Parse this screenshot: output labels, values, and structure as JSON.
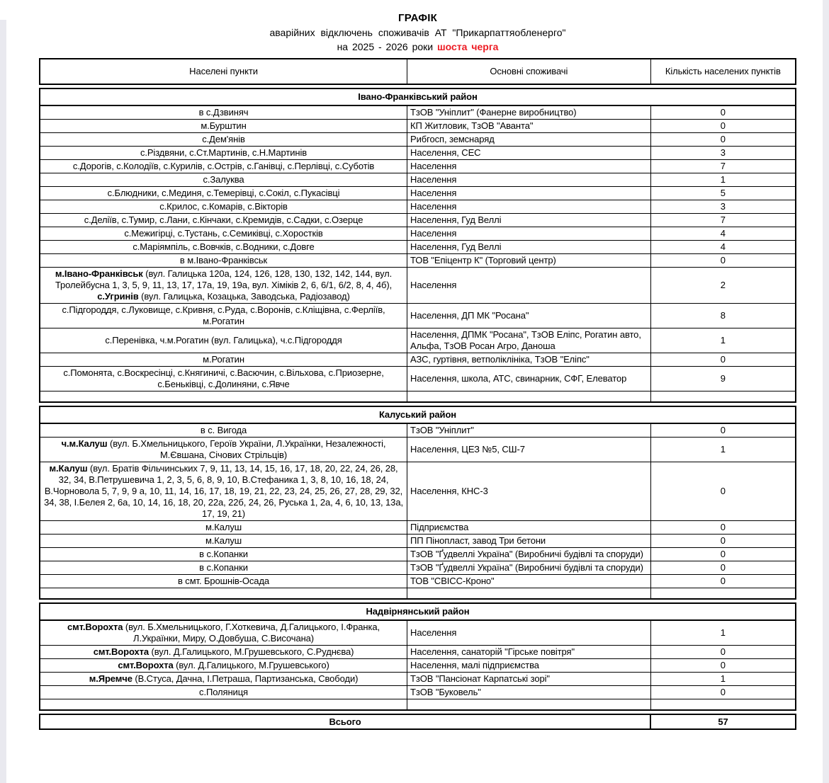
{
  "page": {
    "title_line1": "ГРАФІК",
    "title_line2": "аварійних  відключень  споживачів  АТ \"Прикарпаттяобленерго\"",
    "title_line3_prefix": "на  2025 - 2026 роки ",
    "title_line3_red": "шоста черга"
  },
  "colors": {
    "accent_red": "#ed1c24",
    "border": "#000000",
    "page_bg": "#ffffff"
  },
  "table": {
    "columns": [
      "Населені пункти",
      "Основні споживачі",
      "Кількість населених пунктів"
    ],
    "total_label": "Всього",
    "total_value": "57",
    "sections": [
      {
        "name": "Івано-Франківський район",
        "rows": [
          {
            "settlement": [
              {
                "text": "в с.Дзвиняч",
                "bold": false
              }
            ],
            "consumers": "ТзОВ \"Уніплит\" (Фанерне виробництво)",
            "count": "0"
          },
          {
            "settlement": [
              {
                "text": "м.Бурштин",
                "bold": false
              }
            ],
            "consumers": "КП Житловик, ТзОВ \"Аванта\"",
            "count": "0"
          },
          {
            "settlement": [
              {
                "text": "с.Дем'янів",
                "bold": false
              }
            ],
            "consumers": "Рибгосп, земснаряд",
            "count": "0"
          },
          {
            "settlement": [
              {
                "text": "с.Різдвяни, с.Ст.Мартинів, с.Н.Мартинів",
                "bold": false
              }
            ],
            "consumers": "Населення, СЕС",
            "count": "3"
          },
          {
            "settlement": [
              {
                "text": "с.Дорогів, с.Колодіїв, с.Курилів, с.Острів, с.Ганівці, с.Перлівці, с.Суботів",
                "bold": false
              }
            ],
            "consumers": "Населення",
            "count": "7"
          },
          {
            "settlement": [
              {
                "text": "с.Залуква",
                "bold": false
              }
            ],
            "consumers": "Населення",
            "count": "1"
          },
          {
            "settlement": [
              {
                "text": "с.Блюдники, с.Мединя, с.Темерівці, с.Сокіл, с.Пукасівці",
                "bold": false
              }
            ],
            "consumers": "Населення",
            "count": "5"
          },
          {
            "settlement": [
              {
                "text": "с.Крилос, с.Комарів, с.Вікторів",
                "bold": false
              }
            ],
            "consumers": "Населення",
            "count": "3"
          },
          {
            "settlement": [
              {
                "text": "с.Деліїв, с.Тумир, с.Лани, с.Кінчаки, с.Кремидів, с.Садки, с.Озерце",
                "bold": false
              }
            ],
            "consumers": "Населення, Гуд Веллі",
            "count": "7"
          },
          {
            "settlement": [
              {
                "text": "с.Межигірці, с.Тустань, с.Семиківці, с.Хоростків",
                "bold": false
              }
            ],
            "consumers": "Населення",
            "count": "4"
          },
          {
            "settlement": [
              {
                "text": "с.Маріямпіль, с.Вовчків, с.Водники, с.Довге",
                "bold": false
              }
            ],
            "consumers": "Населення, Гуд Веллі",
            "count": "4"
          },
          {
            "settlement": [
              {
                "text": "в м.Івано-Франківськ",
                "bold": false
              }
            ],
            "consumers": "ТОВ \"Епіцентр К\" (Торговий центр)",
            "count": "0"
          },
          {
            "settlement": [
              {
                "text": "м.Івано-Франківськ",
                "bold": true
              },
              {
                "text": " (вул. Галицька 120а, 124, 126, 128, 130, 132, 142, 144, вул. Тролейбусна 1, 3, 5, 9, 11, 13, 17, 17а, 19, 19а, вул. Хіміків 2, 6, 6/1, 6/2, 8, 4, 4б), ",
                "bold": false
              },
              {
                "text": "с.Угринів",
                "bold": true
              },
              {
                "text": " (вул. Галицька, Козацька, Заводська, Радіозавод)",
                "bold": false
              }
            ],
            "consumers": "Населення",
            "count": "2"
          },
          {
            "settlement": [
              {
                "text": "с.Підгороддя, с.Луковище, с.Кривня, с.Руда, с.Воронів, с.Кліщівна, с.Ферліїв, м.Рогатин",
                "bold": false
              }
            ],
            "consumers": "Населення, ДП МК \"Росана\"",
            "count": "8"
          },
          {
            "settlement": [
              {
                "text": "с.Перенівка, ч.м.Рогатин (вул. Галицька), ч.с.Підгороддя",
                "bold": false
              }
            ],
            "consumers": "Населення, ДПМК \"Росана\", ТзОВ Еліпс, Рогатин авто, Альфа, ТзОВ Росан Агро, Даноша",
            "count": "1"
          },
          {
            "settlement": [
              {
                "text": "м.Рогатин",
                "bold": false
              }
            ],
            "consumers": "АЗС, гуртівня, ветполіклініка, ТзОВ \"Еліпс\"",
            "count": "0"
          },
          {
            "settlement": [
              {
                "text": "с.Помонята, с.Воскресінці, с.Княгиничі, с.Васючин, с.Вільхова, с.Приозерне, с.Беньківці, с.Долиняни, с.Явче",
                "bold": false
              }
            ],
            "consumers": "Населення, школа, АТС, свинарник, СФГ, Елеватор",
            "count": "9"
          },
          {
            "settlement": [],
            "consumers": "",
            "count": ""
          }
        ]
      },
      {
        "name": "Калуський район",
        "rows": [
          {
            "settlement": [
              {
                "text": "в с. Вигода",
                "bold": false
              }
            ],
            "consumers": "ТзОВ \"Уніплит\"",
            "count": "0"
          },
          {
            "settlement": [
              {
                "text": "ч.м.Калуш",
                "bold": true
              },
              {
                "text": " (вул. Б.Хмельницького, Героїв України, Л.Українки, Незалежності, М.Євшана, Січових Стрільців)",
                "bold": false
              }
            ],
            "consumers": "Населення, ЦЕЗ №5, СШ-7",
            "count": "1"
          },
          {
            "settlement": [
              {
                "text": "м.Калуш",
                "bold": true
              },
              {
                "text": " (вул. Братів Фільчинських 7, 9, 11, 13, 14, 15, 16, 17, 18, 20, 22, 24, 26, 28, 32, 34, В.Петрушевича 1, 2, 3, 5, 6, 8, 9, 10, В.Стефаника 1, 3, 8, 10, 16, 18, 24, В.Чорновола 5, 7, 9, 9 а, 10, 11, 14, 16, 17, 18, 19, 21, 22, 23, 24, 25, 26, 27, 28, 29, 32, 34, 38, І.Белея 2, 6а, 10, 14, 16, 18, 20, 22а, 22б, 24, 26, Руська 1, 2а, 4, 6, 10, 13, 13а, 17, 19, 21)",
                "bold": false
              }
            ],
            "consumers": "Населення, КНС-3",
            "count": "0"
          },
          {
            "settlement": [
              {
                "text": "м.Калуш",
                "bold": false
              }
            ],
            "consumers": "Підприємства",
            "count": "0"
          },
          {
            "settlement": [
              {
                "text": "м.Калуш",
                "bold": false
              }
            ],
            "consumers": "ПП Пінопласт, завод Три бетони",
            "count": "0"
          },
          {
            "settlement": [
              {
                "text": "в с.Копанки",
                "bold": false
              }
            ],
            "consumers": "ТзОВ \"Ґудвеллі Україна\" (Виробничі будівлі та споруди)",
            "count": "0"
          },
          {
            "settlement": [
              {
                "text": "в с.Копанки",
                "bold": false
              }
            ],
            "consumers": "ТзОВ \"Ґудвеллі Україна\" (Виробничі будівлі та споруди)",
            "count": "0"
          },
          {
            "settlement": [
              {
                "text": "в смт. Брошнів-Осада",
                "bold": false
              }
            ],
            "consumers": "ТОВ \"СВІСС-Кроно\"",
            "count": "0"
          },
          {
            "settlement": [],
            "consumers": "",
            "count": ""
          }
        ]
      },
      {
        "name": "Надвірнянський район",
        "rows": [
          {
            "settlement": [
              {
                "text": "смт.Ворохта",
                "bold": true
              },
              {
                "text": " (вул. Б.Хмельницького, Г.Хоткевича, Д.Галицького, І.Франка, Л.Українки, Миру, О.Довбуша, С.Височана)",
                "bold": false
              }
            ],
            "consumers": "Населення",
            "count": "1"
          },
          {
            "settlement": [
              {
                "text": "смт.Ворохта",
                "bold": true
              },
              {
                "text": " (вул. Д.Галицького, М.Грушевського, С.Руднєва)",
                "bold": false
              }
            ],
            "consumers": "Населення, санаторій \"Гірське повітря\"",
            "count": "0"
          },
          {
            "settlement": [
              {
                "text": "смт.Ворохта",
                "bold": true
              },
              {
                "text": " (вул. Д.Галицького, М.Грушевського)",
                "bold": false
              }
            ],
            "consumers": "Населення, малі підприємства",
            "count": "0"
          },
          {
            "settlement": [
              {
                "text": "м.Яремче",
                "bold": true
              },
              {
                "text": " (В.Стуса, Дачна, І.Петраша, Партизанська, Свободи)",
                "bold": false
              }
            ],
            "consumers": "ТзОВ \"Пансіонат Карпатські зорі\"",
            "count": "1"
          },
          {
            "settlement": [
              {
                "text": "с.Поляниця",
                "bold": false
              }
            ],
            "consumers": "ТзОВ \"Буковель\"",
            "count": "0"
          },
          {
            "settlement": [],
            "consumers": "",
            "count": ""
          }
        ]
      }
    ]
  }
}
